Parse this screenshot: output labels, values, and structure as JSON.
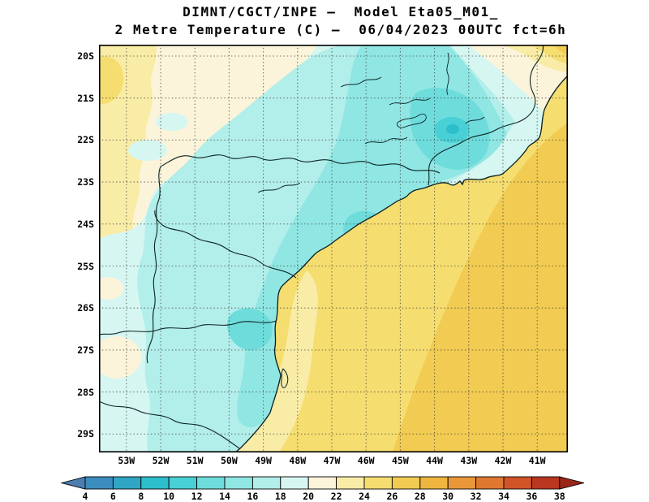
{
  "title": {
    "line1": "DIMNT/CGCT/INPE —  Model Eta05_M01_",
    "line2": "2 Metre Temperature (C) —  06/04/2023 00UTC fct=6h"
  },
  "map": {
    "lat_labels": [
      "20S",
      "21S",
      "22S",
      "23S",
      "24S",
      "25S",
      "26S",
      "27S",
      "28S",
      "29S"
    ],
    "lon_labels": [
      "53W",
      "52W",
      "51W",
      "50W",
      "49W",
      "48W",
      "47W",
      "46W",
      "45W",
      "44W",
      "43W",
      "42W",
      "41W"
    ]
  },
  "colorbar": {
    "tick_labels": [
      "4",
      "6",
      "8",
      "10",
      "12",
      "14",
      "16",
      "18",
      "20",
      "22",
      "24",
      "26",
      "28",
      "30",
      "32",
      "34",
      "36",
      "38"
    ],
    "segment_colors": [
      "#3C8CBE",
      "#2FA6C4",
      "#2DBECC",
      "#49D0D6",
      "#6FDCDC",
      "#8FE6E3",
      "#B2EEEA",
      "#D6F6F1",
      "#FBF4DA",
      "#F8ECA6",
      "#F5DD70",
      "#F1CB52",
      "#EEB540",
      "#E89838",
      "#DF7830",
      "#D05428",
      "#B93620"
    ],
    "arrow_left_color": "#4B7DB0",
    "arrow_right_color": "#9A2618"
  }
}
